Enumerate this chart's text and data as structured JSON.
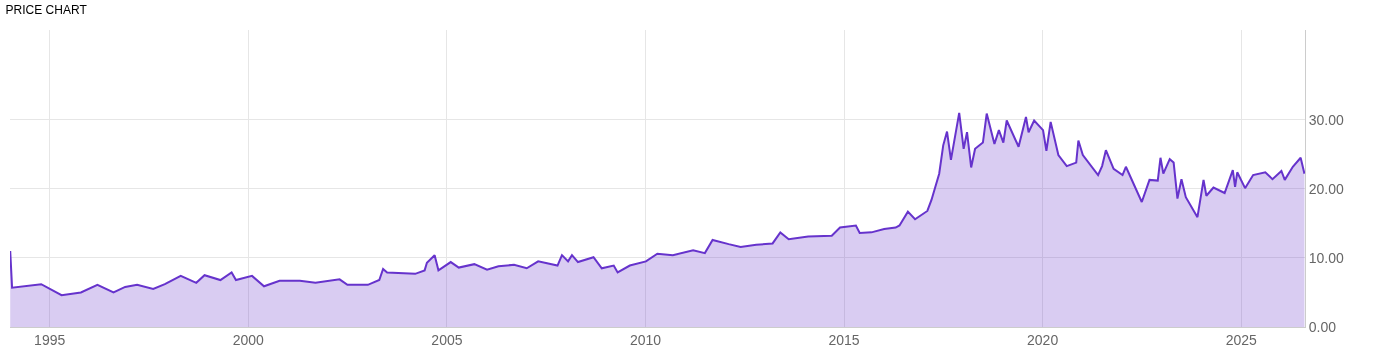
{
  "chart_data": {
    "type": "area",
    "title": "PRICE CHART",
    "x": [
      "1994-01-03",
      "1994-01-20",
      "1994-10-15",
      "1995-04-20",
      "1995-10-15",
      "1996-03-15",
      "1996-08-10",
      "1996-11-25",
      "1997-03-15",
      "1997-08-10",
      "1997-11-25",
      "1998-04-20",
      "1998-09-10",
      "1998-11-25",
      "1999-04-20",
      "1999-08-01",
      "1999-09-10",
      "2000-02-05",
      "2000-05-25",
      "2000-10-15",
      "2001-04-20",
      "2001-09-10",
      "2002-04-20",
      "2002-07-01",
      "2003-01-05",
      "2003-04-20",
      "2003-05-25",
      "2003-07-01",
      "2004-03-15",
      "2004-06-10",
      "2004-07-01",
      "2004-09-10",
      "2004-10-15",
      "2005-02-05",
      "2005-04-20",
      "2005-09-10",
      "2006-01-05",
      "2006-04-20",
      "2006-09-10",
      "2007-01-05",
      "2007-04-20",
      "2007-10-15",
      "2007-11-25",
      "2008-01-20",
      "2008-02-25",
      "2008-04-20",
      "2008-09-10",
      "2008-11-25",
      "2009-03-15",
      "2009-04-20",
      "2009-08-10",
      "2010-01-05",
      "2010-04-20",
      "2010-09-10",
      "2011-03-15",
      "2011-07-01",
      "2011-09-10",
      "2012-02-05",
      "2012-05-25",
      "2012-10-15",
      "2013-03-15",
      "2013-05-25",
      "2013-08-10",
      "2014-02-05",
      "2014-09-10",
      "2014-11-25",
      "2015-04-20",
      "2015-05-25",
      "2015-09-10",
      "2016-01-05",
      "2016-04-20",
      "2016-05-25",
      "2016-08-10",
      "2016-10-15",
      "2017-02-05",
      "2017-03-15",
      "2017-05-25",
      "2017-07-01",
      "2017-08-05",
      "2017-09-10",
      "2017-11-25",
      "2018-01-05",
      "2018-02-05",
      "2018-03-15",
      "2018-04-20",
      "2018-07-01",
      "2018-08-05",
      "2018-10-15",
      "2018-11-25",
      "2019-01-05",
      "2019-02-05",
      "2019-05-25",
      "2019-08-01",
      "2019-08-25",
      "2019-10-15",
      "2020-01-05",
      "2020-02-05",
      "2020-03-15",
      "2020-05-25",
      "2020-08-10",
      "2020-11-05",
      "2020-11-25",
      "2021-01-05",
      "2021-05-25",
      "2021-07-01",
      "2021-08-05",
      "2021-10-15",
      "2022-01-05",
      "2022-02-05",
      "2022-07-01",
      "2022-09-10",
      "2022-11-25",
      "2022-12-20",
      "2023-01-15",
      "2023-03-15",
      "2023-04-20",
      "2023-05-25",
      "2023-07-01",
      "2023-08-10",
      "2023-11-25",
      "2024-01-20",
      "2024-02-15",
      "2024-04-20",
      "2024-08-01",
      "2024-10-15",
      "2024-11-05",
      "2024-11-25",
      "2025-02-05",
      "2025-04-20",
      "2025-08-10",
      "2025-10-15",
      "2026-01-05",
      "2026-02-05",
      "2026-04-20",
      "2026-07-01",
      "2026-08-05"
    ],
    "series": [
      {
        "color": "#6633cc",
        "values": [
          11.0,
          5.7,
          6.2,
          4.6,
          5.0,
          6.1,
          5.0,
          5.8,
          6.1,
          5.5,
          6.2,
          7.4,
          6.4,
          7.5,
          6.8,
          7.9,
          6.8,
          7.4,
          5.9,
          6.7,
          6.7,
          6.4,
          6.9,
          6.1,
          6.1,
          6.8,
          8.4,
          7.9,
          7.7,
          8.2,
          9.3,
          10.4,
          8.2,
          9.4,
          8.6,
          9.1,
          8.3,
          8.8,
          9.0,
          8.5,
          9.5,
          8.9,
          10.4,
          9.5,
          10.4,
          9.4,
          10.1,
          8.5,
          8.9,
          7.9,
          8.9,
          9.5,
          10.6,
          10.4,
          11.1,
          10.7,
          12.6,
          12.0,
          11.6,
          11.9,
          12.1,
          13.7,
          12.7,
          13.1,
          13.2,
          14.4,
          14.7,
          13.6,
          13.7,
          14.2,
          14.4,
          14.7,
          16.7,
          15.6,
          16.8,
          18.4,
          22.2,
          26.3,
          28.3,
          24.2,
          31.0,
          25.8,
          28.2,
          23.1,
          25.8,
          26.7,
          30.9,
          26.5,
          28.5,
          26.7,
          29.9,
          26.1,
          30.4,
          28.2,
          29.9,
          28.5,
          25.5,
          29.7,
          24.9,
          23.3,
          23.8,
          27.0,
          24.9,
          22.0,
          23.3,
          25.6,
          22.9,
          22.0,
          23.2,
          18.1,
          21.3,
          21.2,
          24.5,
          22.2,
          24.3,
          23.8,
          18.6,
          21.4,
          18.8,
          15.9,
          21.3,
          19.0,
          20.2,
          19.4,
          22.7,
          20.3,
          22.4,
          20.1,
          22.0,
          22.4,
          21.4,
          22.6,
          21.3,
          23.2,
          24.5,
          22.2
        ]
      }
    ],
    "xlim": [
      "1994-01-01",
      "2026-08-10"
    ],
    "xticks": [
      "1995",
      "2000",
      "2005",
      "2010",
      "2015",
      "2020",
      "2025"
    ],
    "ylim": [
      0,
      43
    ],
    "yticks": [
      {
        "value": 0,
        "label": "0.00"
      },
      {
        "value": 10,
        "label": "10.00"
      },
      {
        "value": 20,
        "label": "20.00"
      },
      {
        "value": 30,
        "label": "30.00"
      }
    ],
    "grid": true,
    "line_style": "solid"
  }
}
